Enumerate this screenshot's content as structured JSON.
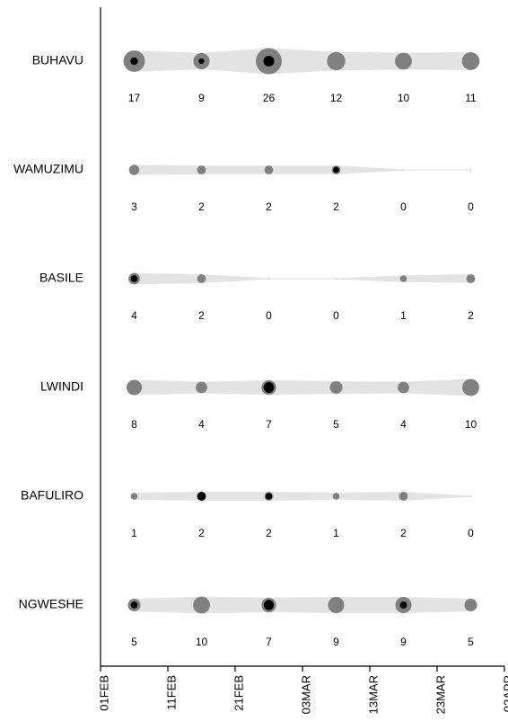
{
  "chart_data": {
    "type": "bubble-timeline",
    "title": "",
    "xlabel": "",
    "ylabel": "",
    "x_ticks": [
      "01FEB",
      "11FEB",
      "21FEB",
      "03MAR",
      "13MAR",
      "23MAR",
      "02APR"
    ],
    "x_dates": [
      "2014-02-06",
      "2014-02-16",
      "2014-02-26",
      "2014-03-08",
      "2014-03-18",
      "2014-03-28"
    ],
    "colors": {
      "band": "#e3e3e3",
      "circle": "#808080",
      "dot": "#000000",
      "axis": "#000000"
    },
    "series": [
      {
        "name": "BUHAVU",
        "values": [
          17,
          9,
          26,
          12,
          10,
          11
        ],
        "inner": [
          0.35,
          0.35,
          0.45,
          0,
          0,
          0
        ]
      },
      {
        "name": "WAMUZIMU",
        "values": [
          3,
          2,
          2,
          2,
          0,
          0
        ],
        "inner": [
          0,
          0,
          0,
          0.7,
          0,
          0
        ]
      },
      {
        "name": "BASILE",
        "values": [
          4,
          2,
          0,
          0,
          1,
          2
        ],
        "inner": [
          0.6,
          0,
          0,
          0,
          0,
          0
        ]
      },
      {
        "name": "LWINDI",
        "values": [
          8,
          4,
          7,
          5,
          4,
          10
        ],
        "inner": [
          0,
          0,
          0.75,
          0,
          0,
          0
        ]
      },
      {
        "name": "BAFULIRO",
        "values": [
          1,
          2,
          2,
          1,
          2,
          0
        ],
        "inner": [
          0,
          1.0,
          0.75,
          0,
          0,
          0
        ]
      },
      {
        "name": "NGWESHE",
        "values": [
          5,
          10,
          7,
          9,
          9,
          5
        ],
        "inner": [
          0.55,
          0,
          0.7,
          0,
          0.45,
          0
        ]
      }
    ]
  }
}
